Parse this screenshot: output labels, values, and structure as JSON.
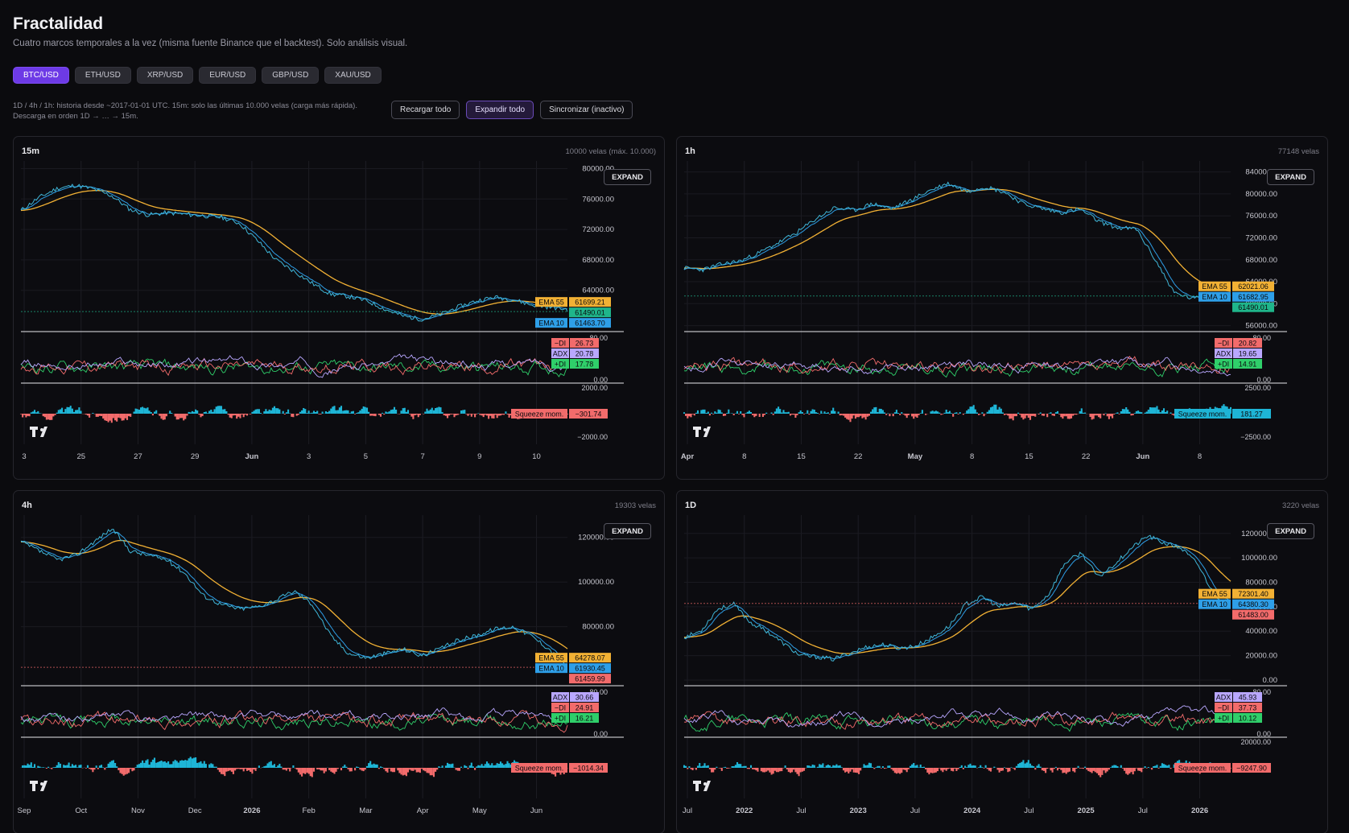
{
  "header": {
    "title": "Fractalidad",
    "subtitle": "Cuatro marcos temporales a la vez (misma fuente Binance que el backtest). Solo análisis visual."
  },
  "pairs": [
    {
      "label": "BTC/USD",
      "active": true
    },
    {
      "label": "ETH/USD",
      "active": false
    },
    {
      "label": "XRP/USD",
      "active": false
    },
    {
      "label": "EUR/USD",
      "active": false
    },
    {
      "label": "GBP/USD",
      "active": false
    },
    {
      "label": "XAU/USD",
      "active": false
    }
  ],
  "note": {
    "line1": "1D / 4h / 1h: historia desde ~2017-01-01 UTC. 15m: solo las últimas 10.000 velas (carga más rápida).",
    "line2": "Descarga en orden 1D → … → 15m."
  },
  "actions": {
    "reload_label": "Recargar todo",
    "expand_all_label": "Expandir todo",
    "sync_label": "Sincronizar (inactivo)"
  },
  "colors": {
    "price": "#3fb6d8",
    "ema55": "#f2b134",
    "ema10": "#2e9fe8",
    "price_tag_up": "#1fb58a",
    "price_tag_down": "#f26b6b",
    "adx": "#b9a7ff",
    "minus_di": "#f26b6b",
    "plus_di": "#2fcf6a",
    "mom_pos": "#1eb5d6",
    "mom_neg": "#f26b6b"
  },
  "panels": [
    {
      "tf": "15m",
      "count": "10000 velas (máx. 10.000)",
      "expand_label": "EXPAND",
      "price_ticks": [
        "80000.00",
        "76000.00",
        "72000.00",
        "68000.00",
        "64000.00"
      ],
      "price_tick_values": [
        80000,
        76000,
        72000,
        68000,
        64000
      ],
      "price_range": [
        59000,
        81000
      ],
      "price_path": [
        74500,
        76200,
        77400,
        77800,
        77300,
        76400,
        74600,
        73900,
        74200,
        74000,
        73800,
        73600,
        72800,
        70500,
        68000,
        66500,
        64900,
        63500,
        63200,
        62600,
        61500,
        60600,
        60200,
        60800,
        61800,
        62600,
        63100,
        62800,
        62100,
        61800,
        61490
      ],
      "tags": [
        {
          "name": "EMA 55",
          "value": "61699.21",
          "color": "ema55"
        },
        {
          "name": "",
          "value": "61490.01",
          "color": "price_tag_up"
        },
        {
          "name": "EMA 10",
          "value": "61463.70",
          "color": "ema10"
        }
      ],
      "adx_ticks": [
        "80.00",
        "0.00"
      ],
      "adx_tags": [
        {
          "name": "−DI",
          "value": "26.73",
          "color": "minus_di"
        },
        {
          "name": "ADX",
          "value": "20.78",
          "color": "adx"
        },
        {
          "name": "+DI",
          "value": "17.78",
          "color": "plus_di"
        }
      ],
      "mom_ticks": [
        "2000.00",
        "−2000.00"
      ],
      "mom_tag": {
        "name": "Squeeze mom.",
        "value": "−301.74",
        "color": "mom_neg"
      },
      "x_labels": [
        "3",
        "25",
        "27",
        "29",
        "Jun",
        "3",
        "5",
        "7",
        "9",
        "10"
      ],
      "x_bold": [
        "Jun"
      ],
      "seed": 11
    },
    {
      "tf": "1h",
      "count": "77148 velas",
      "expand_label": "EXPAND",
      "price_ticks": [
        "84000.00",
        "80000.00",
        "76000.00",
        "72000.00",
        "68000.00",
        "64000.00",
        "60000.00",
        "56000.00"
      ],
      "price_tick_values": [
        84000,
        80000,
        76000,
        72000,
        68000,
        64000,
        60000,
        56000
      ],
      "price_range": [
        55500,
        86000
      ],
      "price_path": [
        66500,
        66200,
        67200,
        67800,
        69300,
        71100,
        73000,
        75500,
        77500,
        77000,
        78200,
        77300,
        78800,
        80600,
        81900,
        80500,
        81300,
        80300,
        78200,
        77300,
        76600,
        77200,
        75000,
        73800,
        73600,
        68000,
        62000,
        60900,
        61300,
        61490
      ],
      "tags": [
        {
          "name": "EMA 55",
          "value": "62021.06",
          "color": "ema55"
        },
        {
          "name": "EMA 10",
          "value": "61682.95",
          "color": "ema10"
        },
        {
          "name": "",
          "value": "61490.01",
          "color": "price_tag_up"
        }
      ],
      "adx_ticks": [
        "80.00",
        "0.00"
      ],
      "adx_tags": [
        {
          "name": "−DI",
          "value": "20.82",
          "color": "minus_di"
        },
        {
          "name": "ADX",
          "value": "19.65",
          "color": "adx"
        },
        {
          "name": "+DI",
          "value": "14.91",
          "color": "plus_di"
        }
      ],
      "mom_ticks": [
        "2500.00",
        "−2500.00"
      ],
      "mom_tag": {
        "name": "Squeeze mom.",
        "value": "181.27",
        "color": "mom_pos"
      },
      "x_labels": [
        "Apr",
        "8",
        "15",
        "22",
        "May",
        "8",
        "15",
        "22",
        "Jun",
        "8"
      ],
      "x_bold": [
        "Apr",
        "May",
        "Jun"
      ],
      "seed": 23
    },
    {
      "tf": "4h",
      "count": "19303 velas",
      "expand_label": "EXPAND",
      "price_ticks": [
        "120000.00",
        "100000.00",
        "80000.00"
      ],
      "price_tick_values": [
        120000,
        100000,
        80000
      ],
      "price_range": [
        55000,
        130000
      ],
      "price_path": [
        118000,
        114000,
        110000,
        112000,
        118000,
        124000,
        114000,
        112000,
        110000,
        104000,
        94000,
        90000,
        88000,
        89000,
        92000,
        96000,
        90000,
        76000,
        68000,
        66000,
        68000,
        70000,
        67000,
        70000,
        74000,
        76000,
        79000,
        80000,
        76000,
        70000,
        61460
      ],
      "tags": [
        {
          "name": "EMA 55",
          "value": "64278.07",
          "color": "ema55"
        },
        {
          "name": "EMA 10",
          "value": "61930.45",
          "color": "ema10"
        },
        {
          "name": "",
          "value": "61459.99",
          "color": "price_tag_down"
        }
      ],
      "adx_ticks": [
        "80.00",
        "0.00"
      ],
      "adx_tags": [
        {
          "name": "ADX",
          "value": "30.66",
          "color": "adx"
        },
        {
          "name": "−DI",
          "value": "24.91",
          "color": "minus_di"
        },
        {
          "name": "+DI",
          "value": "16.21",
          "color": "plus_di"
        }
      ],
      "mom_ticks": [],
      "mom_tag": {
        "name": "Squeeze mom.",
        "value": "−1014.34",
        "color": "mom_neg"
      },
      "x_labels": [
        "Sep",
        "Oct",
        "Nov",
        "Dec",
        "2026",
        "Feb",
        "Mar",
        "Apr",
        "May",
        "Jun"
      ],
      "x_bold": [
        "2026"
      ],
      "seed": 37
    },
    {
      "tf": "1D",
      "count": "3220 velas",
      "expand_label": "EXPAND",
      "price_ticks": [
        "120000.00",
        "100000.00",
        "80000.00",
        "60000.00",
        "40000.00",
        "20000.00",
        "0.00"
      ],
      "price_tick_values": [
        120000,
        100000,
        80000,
        60000,
        40000,
        20000,
        0
      ],
      "price_range": [
        -2000,
        135000
      ],
      "price_path": [
        35000,
        40000,
        58000,
        62000,
        47000,
        40000,
        30000,
        20000,
        19000,
        17000,
        22000,
        27000,
        29000,
        26000,
        28000,
        35000,
        44000,
        62000,
        68000,
        60000,
        63000,
        58000,
        70000,
        96000,
        104000,
        84000,
        95000,
        108000,
        118000,
        112000,
        108000,
        95000,
        70000,
        61483
      ],
      "tags": [
        {
          "name": "EMA 55",
          "value": "72301.40",
          "color": "ema55"
        },
        {
          "name": "EMA 10",
          "value": "64380.30",
          "color": "ema10"
        },
        {
          "name": "",
          "value": "61483.00",
          "color": "price_tag_down"
        }
      ],
      "adx_ticks": [
        "80.00",
        "0.00"
      ],
      "adx_tags": [
        {
          "name": "ADX",
          "value": "45.93",
          "color": "adx"
        },
        {
          "name": "−DI",
          "value": "37.73",
          "color": "minus_di"
        },
        {
          "name": "+DI",
          "value": "10.12",
          "color": "plus_di"
        }
      ],
      "mom_ticks": [
        "20000.00",
        "0.00"
      ],
      "mom_tag": {
        "name": "Squeeze mom.",
        "value": "−9247.90",
        "color": "mom_neg"
      },
      "x_labels": [
        "Jul",
        "2022",
        "Jul",
        "2023",
        "Jul",
        "2024",
        "Jul",
        "2025",
        "Jul",
        "2026"
      ],
      "x_bold": [
        "2022",
        "2023",
        "2024",
        "2025",
        "2026"
      ],
      "seed": 53
    }
  ]
}
